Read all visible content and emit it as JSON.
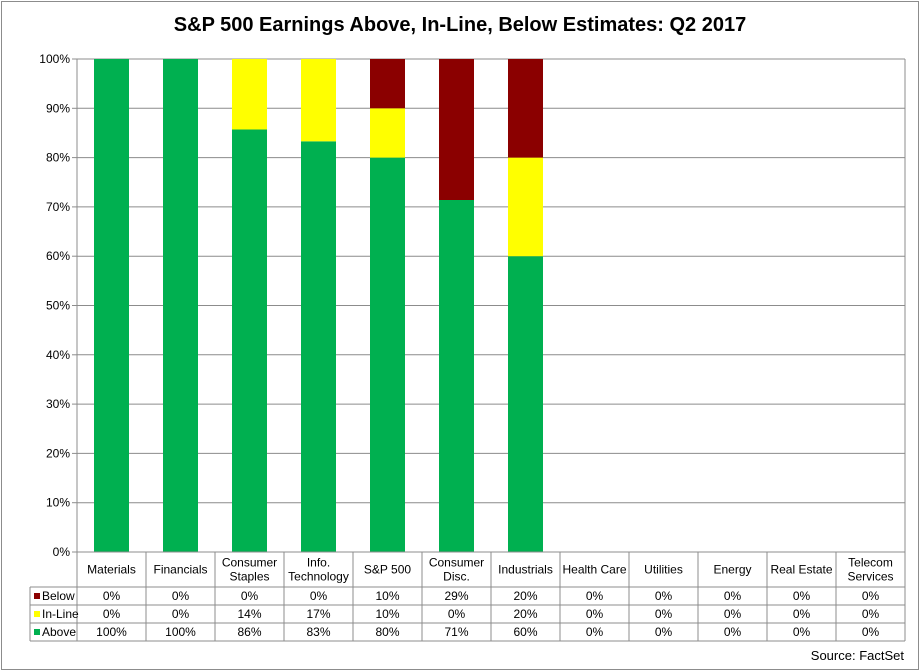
{
  "title": "S&P 500 Earnings Above, In-Line, Below Estimates: Q2 2017",
  "source": "Source: FactSet",
  "chart_data": {
    "type": "bar",
    "stacked": true,
    "title": "S&P 500 Earnings Above, In-Line, Below Estimates: Q2 2017",
    "xlabel": "",
    "ylabel": "",
    "ylim": [
      0,
      100
    ],
    "yticks": [
      "0%",
      "10%",
      "20%",
      "30%",
      "40%",
      "50%",
      "60%",
      "70%",
      "80%",
      "90%",
      "100%"
    ],
    "grid": true,
    "legend": "data-table-left",
    "categories": [
      [
        "Materials"
      ],
      [
        "Financials"
      ],
      [
        "Consumer",
        "Staples"
      ],
      [
        "Info.",
        "Technology"
      ],
      [
        "S&P 500"
      ],
      [
        "Consumer",
        "Disc."
      ],
      [
        "Industrials"
      ],
      [
        "Health Care"
      ],
      [
        "Utilities"
      ],
      [
        "Energy"
      ],
      [
        "Real Estate"
      ],
      [
        "Telecom",
        "Services"
      ]
    ],
    "series": [
      {
        "name": "Below",
        "color": "#8b0000",
        "values": [
          0,
          0,
          0,
          0,
          10,
          28.6,
          20,
          0,
          0,
          0,
          0,
          0
        ],
        "labels": [
          "0%",
          "0%",
          "0%",
          "0%",
          "10%",
          "29%",
          "20%",
          "0%",
          "0%",
          "0%",
          "0%",
          "0%"
        ]
      },
      {
        "name": "In-Line",
        "color": "#ffff00",
        "values": [
          0,
          0,
          14.3,
          16.7,
          10,
          0,
          20,
          0,
          0,
          0,
          0,
          0
        ],
        "labels": [
          "0%",
          "0%",
          "14%",
          "17%",
          "10%",
          "0%",
          "20%",
          "0%",
          "0%",
          "0%",
          "0%",
          "0%"
        ]
      },
      {
        "name": "Above",
        "color": "#00b050",
        "values": [
          100,
          100,
          85.7,
          83.3,
          80,
          71.4,
          60,
          0,
          0,
          0,
          0,
          0
        ],
        "labels": [
          "100%",
          "100%",
          "86%",
          "83%",
          "80%",
          "71%",
          "60%",
          "0%",
          "0%",
          "0%",
          "0%",
          "0%"
        ]
      }
    ]
  }
}
